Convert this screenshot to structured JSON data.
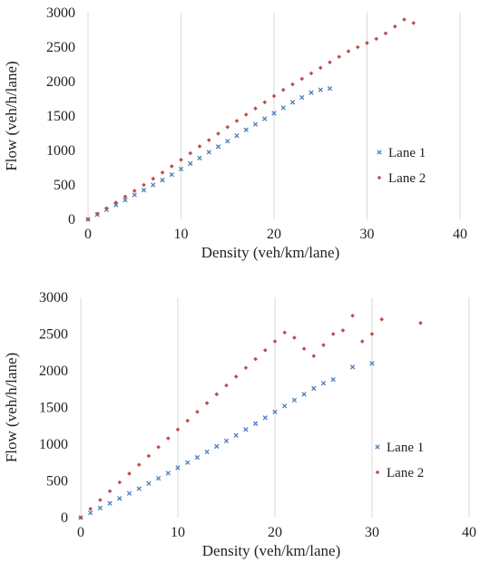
{
  "chart_data": [
    {
      "type": "scatter",
      "xlabel": "Density (veh/km/lane)",
      "ylabel": "Flow (veh/h/lane)",
      "xlim": [
        0,
        40
      ],
      "ylim": [
        0,
        3000
      ],
      "xticks": [
        "0",
        "10",
        "20",
        "30",
        "40"
      ],
      "yticks": [
        "0",
        "500",
        "1000",
        "1500",
        "2000",
        "2500",
        "3000"
      ],
      "grid": "vertical",
      "legend_position": "right",
      "series": [
        {
          "name": "Lane 1",
          "marker": "x",
          "color": "#4a7ebb",
          "points": [
            [
              0,
              0
            ],
            [
              1,
              70
            ],
            [
              2,
              140
            ],
            [
              3,
              210
            ],
            [
              4,
              280
            ],
            [
              5,
              355
            ],
            [
              6,
              425
            ],
            [
              7,
              500
            ],
            [
              8,
              570
            ],
            [
              9,
              650
            ],
            [
              10,
              730
            ],
            [
              11,
              810
            ],
            [
              12,
              890
            ],
            [
              13,
              975
            ],
            [
              14,
              1055
            ],
            [
              15,
              1135
            ],
            [
              16,
              1215
            ],
            [
              17,
              1300
            ],
            [
              18,
              1380
            ],
            [
              19,
              1460
            ],
            [
              20,
              1540
            ],
            [
              21,
              1620
            ],
            [
              22,
              1700
            ],
            [
              23,
              1770
            ],
            [
              24,
              1840
            ],
            [
              25,
              1880
            ],
            [
              26,
              1900
            ]
          ]
        },
        {
          "name": "Lane 2",
          "marker": "diamond",
          "color": "#be4b48",
          "points": [
            [
              0,
              0
            ],
            [
              1,
              80
            ],
            [
              2,
              160
            ],
            [
              3,
              245
            ],
            [
              4,
              330
            ],
            [
              5,
              415
            ],
            [
              6,
              500
            ],
            [
              7,
              590
            ],
            [
              8,
              680
            ],
            [
              9,
              770
            ],
            [
              10,
              865
            ],
            [
              11,
              960
            ],
            [
              12,
              1060
            ],
            [
              13,
              1150
            ],
            [
              14,
              1245
            ],
            [
              15,
              1340
            ],
            [
              16,
              1430
            ],
            [
              17,
              1520
            ],
            [
              18,
              1610
            ],
            [
              19,
              1700
            ],
            [
              20,
              1790
            ],
            [
              21,
              1880
            ],
            [
              22,
              1960
            ],
            [
              23,
              2040
            ],
            [
              24,
              2120
            ],
            [
              25,
              2200
            ],
            [
              26,
              2280
            ],
            [
              27,
              2360
            ],
            [
              28,
              2440
            ],
            [
              29,
              2500
            ],
            [
              30,
              2560
            ],
            [
              31,
              2620
            ],
            [
              32,
              2700
            ],
            [
              33,
              2800
            ],
            [
              34,
              2900
            ],
            [
              35,
              2850
            ]
          ]
        }
      ]
    },
    {
      "type": "scatter",
      "xlabel": "Density (veh/km/lane)",
      "ylabel": "Flow (veh/h/lane)",
      "xlim": [
        0,
        40
      ],
      "ylim": [
        0,
        3000
      ],
      "xticks": [
        "0",
        "10",
        "20",
        "30",
        "40"
      ],
      "yticks": [
        "0",
        "500",
        "1000",
        "1500",
        "2000",
        "2500",
        "3000"
      ],
      "grid": "vertical",
      "legend_position": "right",
      "series": [
        {
          "name": "Lane 1",
          "marker": "x",
          "color": "#4a7ebb",
          "points": [
            [
              0,
              0
            ],
            [
              1,
              65
            ],
            [
              2,
              130
            ],
            [
              3,
              195
            ],
            [
              4,
              260
            ],
            [
              5,
              330
            ],
            [
              6,
              395
            ],
            [
              7,
              465
            ],
            [
              8,
              535
            ],
            [
              9,
              605
            ],
            [
              10,
              680
            ],
            [
              11,
              750
            ],
            [
              12,
              820
            ],
            [
              13,
              895
            ],
            [
              14,
              970
            ],
            [
              15,
              1045
            ],
            [
              16,
              1120
            ],
            [
              17,
              1200
            ],
            [
              18,
              1280
            ],
            [
              19,
              1360
            ],
            [
              20,
              1440
            ],
            [
              21,
              1520
            ],
            [
              22,
              1600
            ],
            [
              23,
              1680
            ],
            [
              24,
              1760
            ],
            [
              25,
              1830
            ],
            [
              26,
              1880
            ],
            [
              28,
              2050
            ],
            [
              30,
              2100
            ]
          ]
        },
        {
          "name": "Lane 2",
          "marker": "diamond",
          "color": "#be4b48",
          "points": [
            [
              0,
              0
            ],
            [
              1,
              120
            ],
            [
              2,
              240
            ],
            [
              3,
              360
            ],
            [
              4,
              480
            ],
            [
              5,
              600
            ],
            [
              6,
              720
            ],
            [
              7,
              840
            ],
            [
              8,
              960
            ],
            [
              9,
              1080
            ],
            [
              10,
              1200
            ],
            [
              11,
              1320
            ],
            [
              12,
              1440
            ],
            [
              13,
              1560
            ],
            [
              14,
              1680
            ],
            [
              15,
              1800
            ],
            [
              16,
              1920
            ],
            [
              17,
              2040
            ],
            [
              18,
              2160
            ],
            [
              19,
              2280
            ],
            [
              20,
              2400
            ],
            [
              21,
              2520
            ],
            [
              22,
              2450
            ],
            [
              23,
              2300
            ],
            [
              24,
              2200
            ],
            [
              25,
              2350
            ],
            [
              26,
              2500
            ],
            [
              27,
              2550
            ],
            [
              28,
              2750
            ],
            [
              29,
              2400
            ],
            [
              30,
              2500
            ],
            [
              31,
              2700
            ],
            [
              35,
              2650
            ]
          ]
        }
      ]
    }
  ]
}
